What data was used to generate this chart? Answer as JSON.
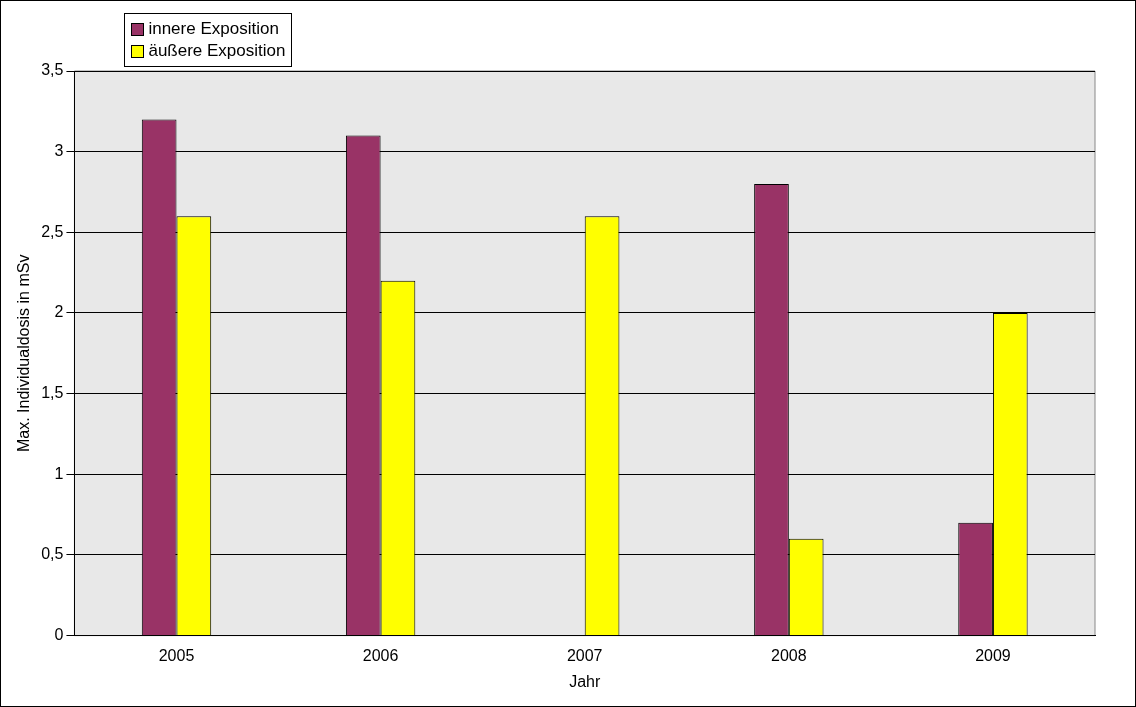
{
  "chart_data": {
    "type": "bar",
    "xlabel": "Jahr",
    "ylabel": "Max. Individualdosis in mSv",
    "categories": [
      "2005",
      "2006",
      "2007",
      "2008",
      "2009"
    ],
    "series": [
      {
        "name": "innere Exposition",
        "color": "#993366",
        "values": [
          3.2,
          3.1,
          0,
          2.8,
          0.7
        ]
      },
      {
        "name": "äußere Exposition",
        "color": "#ffff00",
        "values": [
          2.6,
          2.2,
          2.6,
          0.6,
          2.0
        ]
      }
    ],
    "ylim": [
      0,
      3.5
    ],
    "yticks": [
      0,
      {
        "value": 0.5,
        "label": "0,5"
      },
      1,
      {
        "value": 1.5,
        "label": "1,5"
      },
      2,
      {
        "value": 2.5,
        "label": "2,5"
      },
      3,
      {
        "value": 3.5,
        "label": "3,5"
      }
    ],
    "grid": "y",
    "legend": "top left"
  }
}
